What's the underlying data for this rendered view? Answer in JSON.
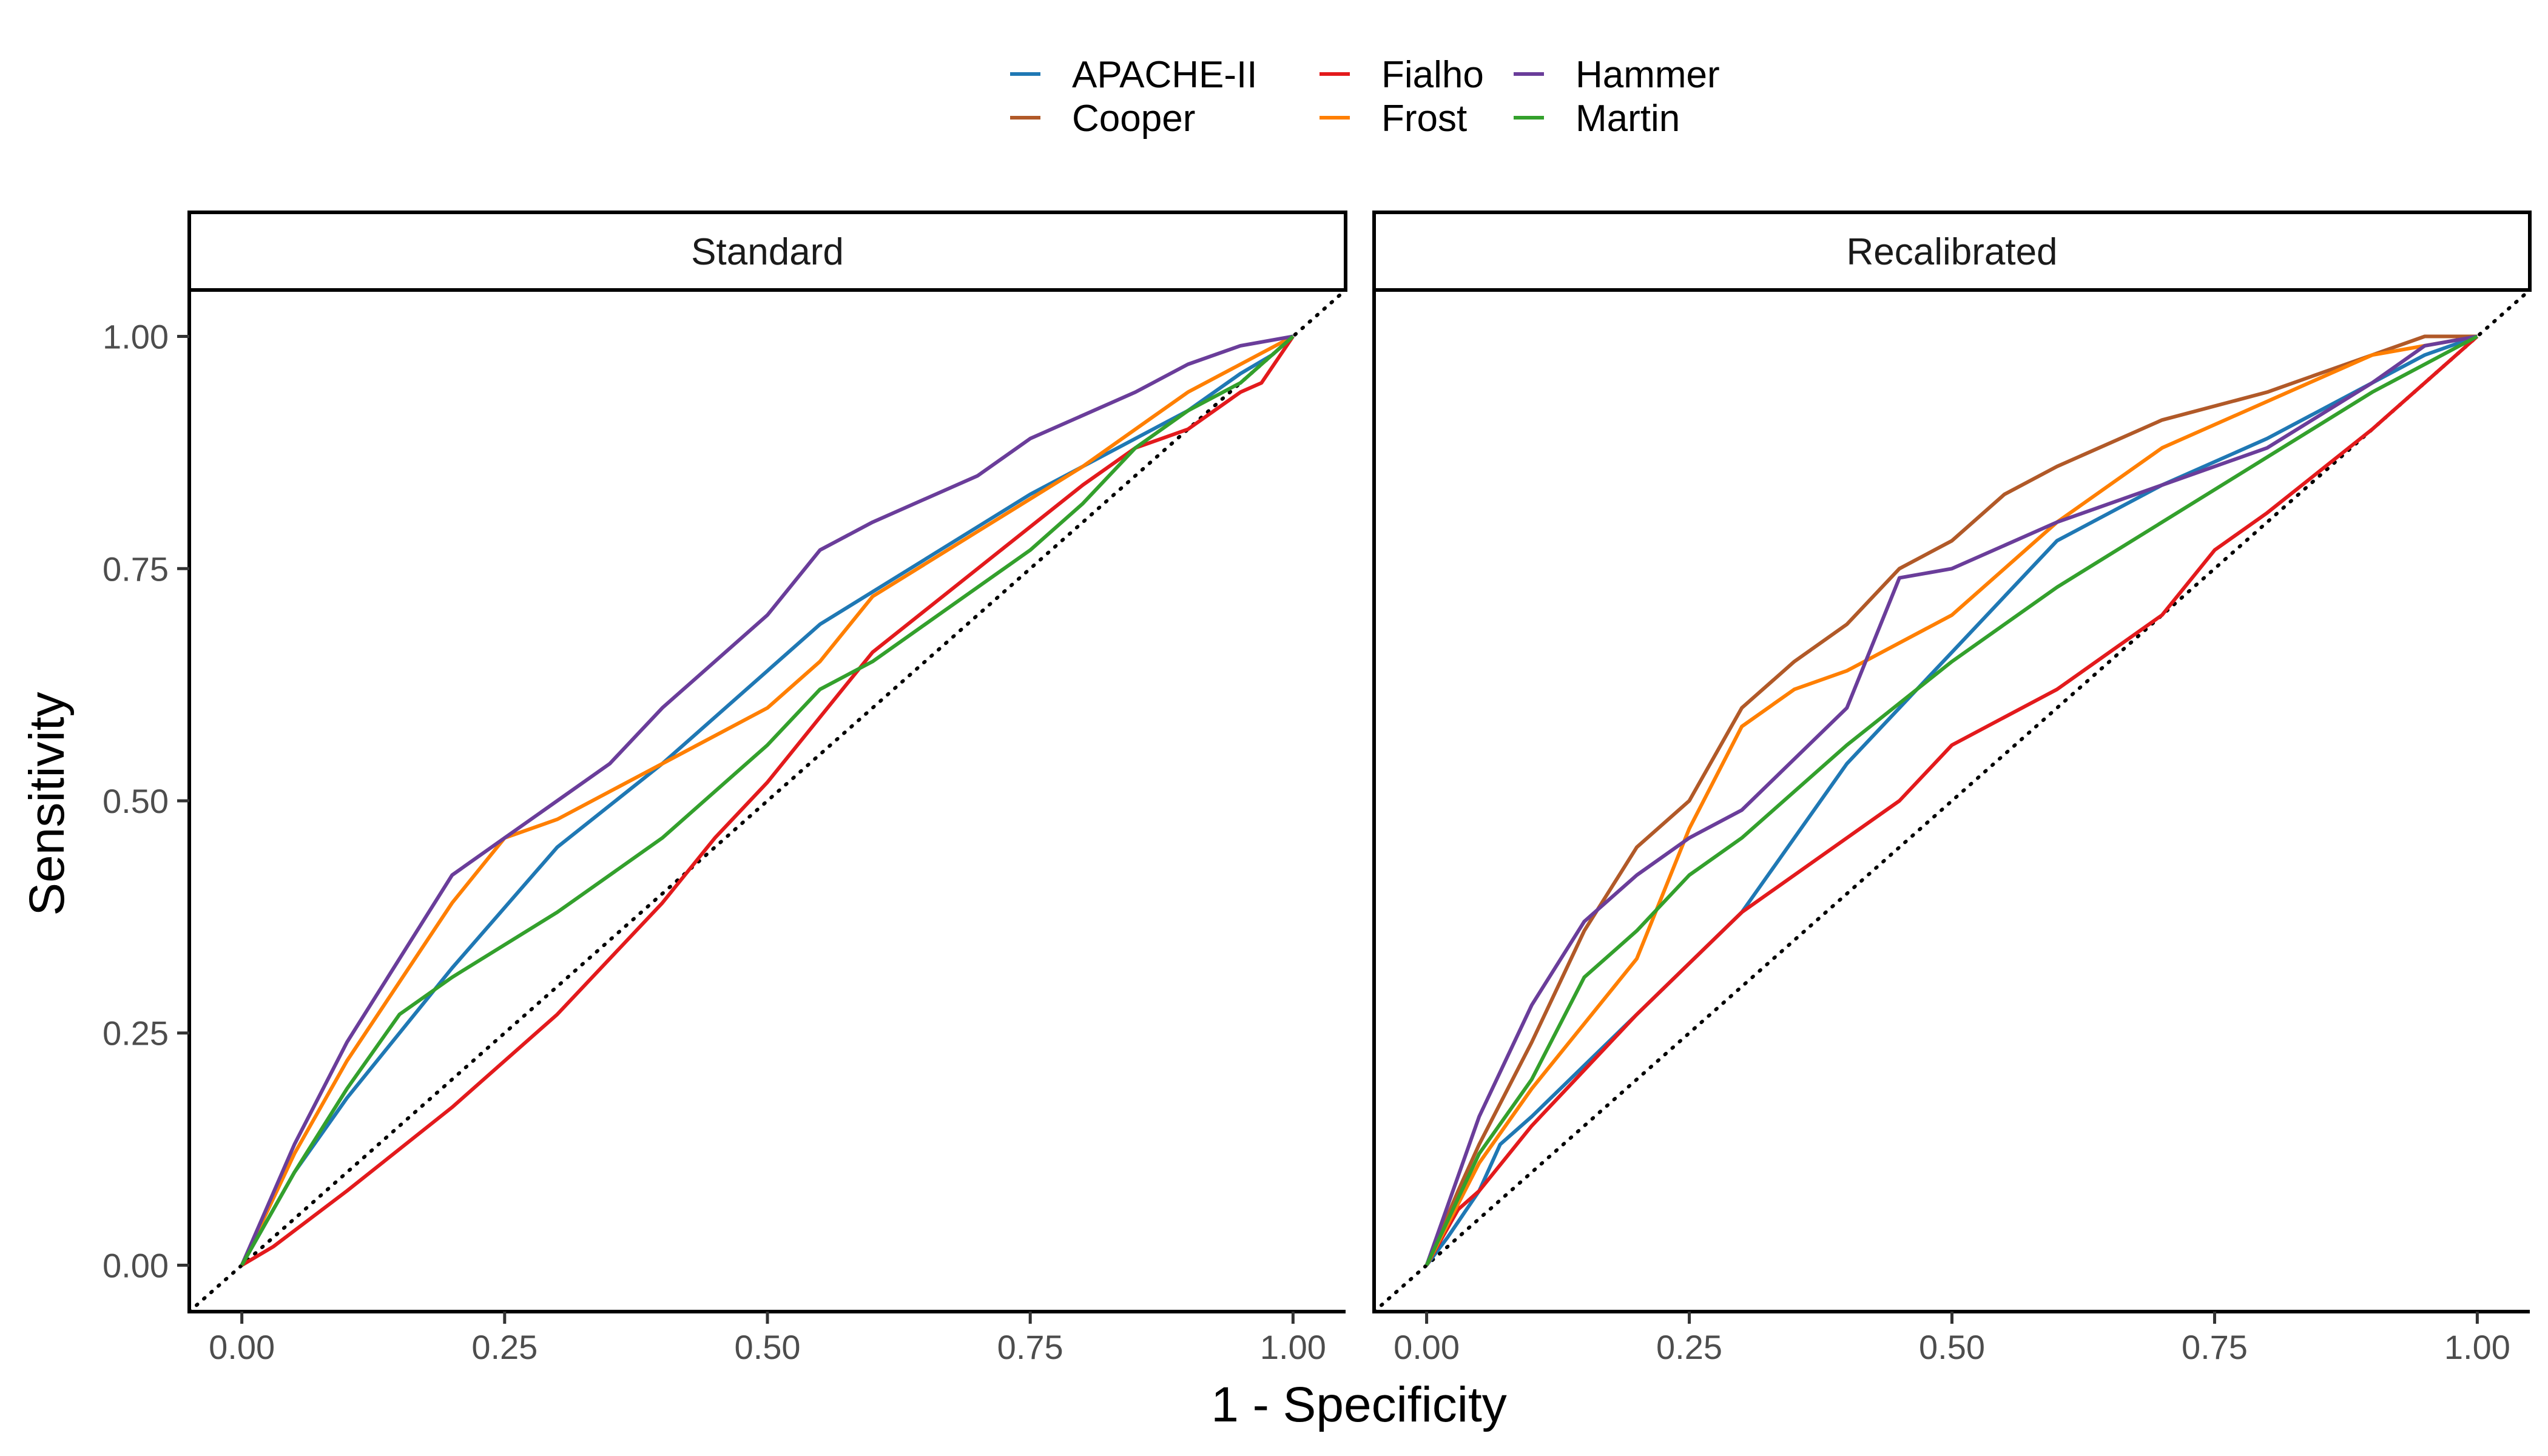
{
  "chart_data": {
    "type": "line",
    "xlabel": "1 - Specificity",
    "ylabel": "Sensitivity",
    "xlim": [
      -0.05,
      1.05
    ],
    "ylim": [
      -0.05,
      1.05
    ],
    "x_ticks": [
      "0.00",
      "0.25",
      "0.50",
      "0.75",
      "1.00"
    ],
    "y_ticks": [
      "0.00",
      "0.25",
      "0.50",
      "0.75",
      "1.00"
    ],
    "legend_position": "top",
    "reference_line": "diagonal-dotted",
    "grid": false,
    "legend": [
      {
        "name": "APACHE-II",
        "color": "#1f78b4"
      },
      {
        "name": "Cooper",
        "color": "#b15928"
      },
      {
        "name": "Fialho",
        "color": "#e31a1c"
      },
      {
        "name": "Frost",
        "color": "#ff7f00"
      },
      {
        "name": "Hammer",
        "color": "#6a3d9a"
      },
      {
        "name": "Martin",
        "color": "#33a02c"
      }
    ],
    "panels": [
      {
        "title": "Standard",
        "series": [
          {
            "name": "APACHE-II",
            "color": "#1f78b4",
            "points": [
              [
                0,
                0
              ],
              [
                0.05,
                0.1
              ],
              [
                0.1,
                0.18
              ],
              [
                0.2,
                0.32
              ],
              [
                0.3,
                0.45
              ],
              [
                0.4,
                0.54
              ],
              [
                0.5,
                0.64
              ],
              [
                0.55,
                0.69
              ],
              [
                0.65,
                0.76
              ],
              [
                0.75,
                0.83
              ],
              [
                0.8,
                0.86
              ],
              [
                0.9,
                0.92
              ],
              [
                0.95,
                0.96
              ],
              [
                0.98,
                0.98
              ],
              [
                1,
                1
              ]
            ]
          },
          {
            "name": "Cooper",
            "color": "#b15928",
            "points": []
          },
          {
            "name": "Fialho",
            "color": "#e31a1c",
            "points": [
              [
                0,
                0
              ],
              [
                0.03,
                0.02
              ],
              [
                0.1,
                0.08
              ],
              [
                0.2,
                0.17
              ],
              [
                0.3,
                0.27
              ],
              [
                0.4,
                0.39
              ],
              [
                0.45,
                0.46
              ],
              [
                0.5,
                0.52
              ],
              [
                0.55,
                0.59
              ],
              [
                0.6,
                0.66
              ],
              [
                0.7,
                0.75
              ],
              [
                0.8,
                0.84
              ],
              [
                0.85,
                0.88
              ],
              [
                0.9,
                0.9
              ],
              [
                0.95,
                0.94
              ],
              [
                0.97,
                0.95
              ],
              [
                1,
                1
              ]
            ]
          },
          {
            "name": "Frost",
            "color": "#ff7f00",
            "points": [
              [
                0,
                0
              ],
              [
                0.05,
                0.12
              ],
              [
                0.1,
                0.22
              ],
              [
                0.2,
                0.39
              ],
              [
                0.25,
                0.46
              ],
              [
                0.3,
                0.48
              ],
              [
                0.4,
                0.54
              ],
              [
                0.45,
                0.57
              ],
              [
                0.5,
                0.6
              ],
              [
                0.55,
                0.65
              ],
              [
                0.6,
                0.72
              ],
              [
                0.7,
                0.79
              ],
              [
                0.8,
                0.86
              ],
              [
                0.9,
                0.94
              ],
              [
                0.95,
                0.97
              ],
              [
                1,
                1
              ]
            ]
          },
          {
            "name": "Hammer",
            "color": "#6a3d9a",
            "points": [
              [
                0,
                0
              ],
              [
                0.05,
                0.13
              ],
              [
                0.1,
                0.24
              ],
              [
                0.2,
                0.42
              ],
              [
                0.25,
                0.46
              ],
              [
                0.3,
                0.5
              ],
              [
                0.35,
                0.54
              ],
              [
                0.4,
                0.6
              ],
              [
                0.5,
                0.7
              ],
              [
                0.55,
                0.77
              ],
              [
                0.6,
                0.8
              ],
              [
                0.7,
                0.85
              ],
              [
                0.75,
                0.89
              ],
              [
                0.85,
                0.94
              ],
              [
                0.9,
                0.97
              ],
              [
                0.95,
                0.99
              ],
              [
                1,
                1
              ]
            ]
          },
          {
            "name": "Martin",
            "color": "#33a02c",
            "points": [
              [
                0,
                0
              ],
              [
                0.05,
                0.1
              ],
              [
                0.1,
                0.19
              ],
              [
                0.15,
                0.27
              ],
              [
                0.2,
                0.31
              ],
              [
                0.3,
                0.38
              ],
              [
                0.4,
                0.46
              ],
              [
                0.5,
                0.56
              ],
              [
                0.55,
                0.62
              ],
              [
                0.6,
                0.65
              ],
              [
                0.7,
                0.73
              ],
              [
                0.75,
                0.77
              ],
              [
                0.8,
                0.82
              ],
              [
                0.85,
                0.88
              ],
              [
                0.9,
                0.92
              ],
              [
                0.95,
                0.95
              ],
              [
                1,
                1
              ]
            ]
          }
        ]
      },
      {
        "title": "Recalibrated",
        "series": [
          {
            "name": "APACHE-II",
            "color": "#1f78b4",
            "points": [
              [
                0,
                0
              ],
              [
                0.02,
                0.03
              ],
              [
                0.05,
                0.08
              ],
              [
                0.07,
                0.13
              ],
              [
                0.1,
                0.16
              ],
              [
                0.2,
                0.27
              ],
              [
                0.3,
                0.38
              ],
              [
                0.4,
                0.54
              ],
              [
                0.5,
                0.66
              ],
              [
                0.6,
                0.78
              ],
              [
                0.7,
                0.84
              ],
              [
                0.8,
                0.89
              ],
              [
                0.9,
                0.95
              ],
              [
                0.95,
                0.98
              ],
              [
                1,
                1
              ]
            ]
          },
          {
            "name": "Cooper",
            "color": "#b15928",
            "points": [
              [
                0,
                0
              ],
              [
                0.03,
                0.08
              ],
              [
                0.05,
                0.13
              ],
              [
                0.1,
                0.24
              ],
              [
                0.15,
                0.36
              ],
              [
                0.2,
                0.45
              ],
              [
                0.25,
                0.5
              ],
              [
                0.3,
                0.6
              ],
              [
                0.35,
                0.65
              ],
              [
                0.4,
                0.69
              ],
              [
                0.45,
                0.75
              ],
              [
                0.5,
                0.78
              ],
              [
                0.55,
                0.83
              ],
              [
                0.6,
                0.86
              ],
              [
                0.7,
                0.91
              ],
              [
                0.8,
                0.94
              ],
              [
                0.9,
                0.98
              ],
              [
                0.95,
                1
              ],
              [
                1,
                1
              ]
            ]
          },
          {
            "name": "Fialho",
            "color": "#e31a1c",
            "points": [
              [
                0,
                0
              ],
              [
                0.03,
                0.06
              ],
              [
                0.05,
                0.08
              ],
              [
                0.1,
                0.15
              ],
              [
                0.2,
                0.27
              ],
              [
                0.3,
                0.38
              ],
              [
                0.4,
                0.46
              ],
              [
                0.45,
                0.5
              ],
              [
                0.5,
                0.56
              ],
              [
                0.6,
                0.62
              ],
              [
                0.7,
                0.7
              ],
              [
                0.75,
                0.77
              ],
              [
                0.8,
                0.81
              ],
              [
                0.9,
                0.9
              ],
              [
                0.95,
                0.95
              ],
              [
                1,
                1
              ]
            ]
          },
          {
            "name": "Frost",
            "color": "#ff7f00",
            "points": [
              [
                0,
                0
              ],
              [
                0.05,
                0.11
              ],
              [
                0.1,
                0.19
              ],
              [
                0.2,
                0.33
              ],
              [
                0.25,
                0.47
              ],
              [
                0.3,
                0.58
              ],
              [
                0.35,
                0.62
              ],
              [
                0.4,
                0.64
              ],
              [
                0.5,
                0.7
              ],
              [
                0.6,
                0.8
              ],
              [
                0.7,
                0.88
              ],
              [
                0.8,
                0.93
              ],
              [
                0.9,
                0.98
              ],
              [
                1,
                1
              ]
            ]
          },
          {
            "name": "Hammer",
            "color": "#6a3d9a",
            "points": [
              [
                0,
                0
              ],
              [
                0.05,
                0.16
              ],
              [
                0.1,
                0.28
              ],
              [
                0.15,
                0.37
              ],
              [
                0.2,
                0.42
              ],
              [
                0.25,
                0.46
              ],
              [
                0.3,
                0.49
              ],
              [
                0.4,
                0.6
              ],
              [
                0.45,
                0.74
              ],
              [
                0.5,
                0.75
              ],
              [
                0.6,
                0.8
              ],
              [
                0.7,
                0.84
              ],
              [
                0.8,
                0.88
              ],
              [
                0.9,
                0.95
              ],
              [
                0.95,
                0.99
              ],
              [
                1,
                1
              ]
            ]
          },
          {
            "name": "Martin",
            "color": "#33a02c",
            "points": [
              [
                0,
                0
              ],
              [
                0.05,
                0.12
              ],
              [
                0.1,
                0.2
              ],
              [
                0.15,
                0.31
              ],
              [
                0.2,
                0.36
              ],
              [
                0.25,
                0.42
              ],
              [
                0.3,
                0.46
              ],
              [
                0.4,
                0.56
              ],
              [
                0.5,
                0.65
              ],
              [
                0.6,
                0.73
              ],
              [
                0.7,
                0.8
              ],
              [
                0.8,
                0.87
              ],
              [
                0.9,
                0.94
              ],
              [
                0.95,
                0.97
              ],
              [
                1,
                1
              ]
            ]
          }
        ]
      }
    ]
  }
}
